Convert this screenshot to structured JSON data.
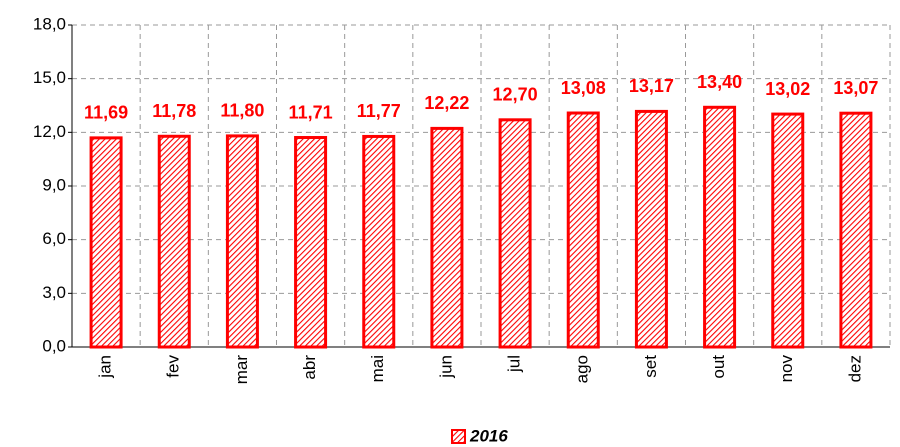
{
  "chart_data": {
    "type": "bar",
    "categories": [
      "jan",
      "fev",
      "mar",
      "abr",
      "mai",
      "jun",
      "jul",
      "ago",
      "set",
      "out",
      "nov",
      "dez"
    ],
    "series": [
      {
        "name": "2016",
        "color": "#ff0000",
        "values": [
          11.69,
          11.78,
          11.8,
          11.71,
          11.77,
          12.22,
          12.7,
          13.08,
          13.17,
          13.4,
          13.02,
          13.07
        ],
        "value_labels": [
          "11,69",
          "11,78",
          "11,80",
          "11,71",
          "11,77",
          "12,22",
          "12,70",
          "13,08",
          "13,17",
          "13,40",
          "13,02",
          "13,07"
        ]
      }
    ],
    "ylim": [
      0,
      18
    ],
    "yticks": [
      {
        "value": 0,
        "label": "0,0"
      },
      {
        "value": 3,
        "label": "3,0"
      },
      {
        "value": 6,
        "label": "6,0"
      },
      {
        "value": 9,
        "label": "9,0"
      },
      {
        "value": 12,
        "label": "12,0"
      },
      {
        "value": 15,
        "label": "15,0"
      },
      {
        "value": 18,
        "label": "18,0"
      }
    ],
    "grid": true,
    "legend": "bottom"
  }
}
